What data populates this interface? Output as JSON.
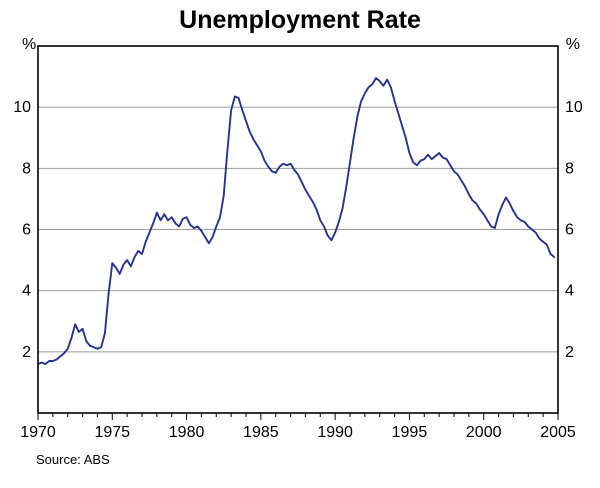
{
  "title": "Unemployment Rate",
  "source": "Source: ABS",
  "axes": {
    "left_unit": "%",
    "right_unit": "%"
  },
  "colors": {
    "line": "#28338c",
    "grid": "#9b9b9b",
    "frame": "#000000"
  },
  "chart_data": {
    "type": "line",
    "title": "Unemployment Rate",
    "xlabel": "",
    "ylabel": "%",
    "xlim": [
      1970,
      2005
    ],
    "ylim": [
      0,
      12
    ],
    "xticks": [
      1970,
      1975,
      1980,
      1985,
      1990,
      1995,
      2000,
      2005
    ],
    "yticks": [
      2,
      4,
      6,
      8,
      10
    ],
    "x_minor_tick_step": 1,
    "grid": true,
    "legend": "none",
    "x_start": 1970.0,
    "x_step": 0.25,
    "series": [
      {
        "name": "Unemployment rate (%)",
        "color": "#28338c",
        "values": [
          1.6,
          1.65,
          1.6,
          1.7,
          1.7,
          1.75,
          1.85,
          1.95,
          2.1,
          2.45,
          2.9,
          2.65,
          2.75,
          2.35,
          2.2,
          2.15,
          2.1,
          2.15,
          2.6,
          3.9,
          4.9,
          4.75,
          4.55,
          4.85,
          5.0,
          4.8,
          5.1,
          5.3,
          5.2,
          5.6,
          5.9,
          6.2,
          6.55,
          6.3,
          6.5,
          6.3,
          6.4,
          6.2,
          6.1,
          6.35,
          6.4,
          6.15,
          6.05,
          6.1,
          5.95,
          5.75,
          5.55,
          5.75,
          6.1,
          6.4,
          7.1,
          8.6,
          9.9,
          10.35,
          10.3,
          9.9,
          9.55,
          9.2,
          8.95,
          8.75,
          8.55,
          8.25,
          8.05,
          7.9,
          7.85,
          8.05,
          8.15,
          8.1,
          8.15,
          7.95,
          7.8,
          7.55,
          7.3,
          7.1,
          6.9,
          6.65,
          6.3,
          6.1,
          5.8,
          5.65,
          5.9,
          6.25,
          6.7,
          7.4,
          8.2,
          9.0,
          9.7,
          10.2,
          10.45,
          10.65,
          10.75,
          10.95,
          10.85,
          10.7,
          10.9,
          10.65,
          10.2,
          9.8,
          9.4,
          9.0,
          8.5,
          8.2,
          8.1,
          8.25,
          8.3,
          8.45,
          8.3,
          8.4,
          8.5,
          8.35,
          8.3,
          8.1,
          7.9,
          7.8,
          7.6,
          7.4,
          7.15,
          6.95,
          6.85,
          6.65,
          6.5,
          6.3,
          6.1,
          6.05,
          6.5,
          6.8,
          7.05,
          6.85,
          6.6,
          6.4,
          6.3,
          6.25,
          6.1,
          6.0,
          5.9,
          5.7,
          5.6,
          5.5,
          5.2,
          5.1
        ]
      }
    ]
  }
}
